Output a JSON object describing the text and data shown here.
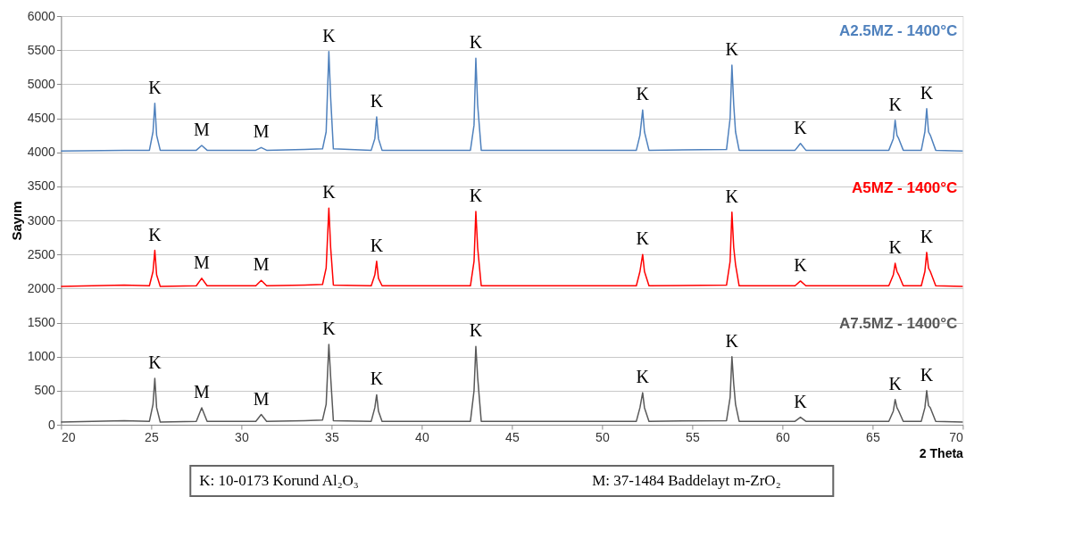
{
  "chart_data": {
    "type": "line",
    "xlabel": "2 Theta",
    "ylabel": "Sayım",
    "x": [
      20,
      23.5,
      24.9,
      25.1,
      25.2,
      25.3,
      25.5,
      27.5,
      27.8,
      28.1,
      30.8,
      31.1,
      31.4,
      33.5,
      34.5,
      34.7,
      34.85,
      34.95,
      35.1,
      37.2,
      37.4,
      37.5,
      37.6,
      37.8,
      42.7,
      42.9,
      43.0,
      43.1,
      43.3,
      51.9,
      52.1,
      52.25,
      52.35,
      52.6,
      56.9,
      57.1,
      57.2,
      57.3,
      57.4,
      57.6,
      60.7,
      61.0,
      61.3,
      65.9,
      66.15,
      66.25,
      66.35,
      66.45,
      66.7,
      67.7,
      67.9,
      68.0,
      68.1,
      68.2,
      68.5,
      70
    ],
    "series": [
      {
        "name": "A2.5MZ - 1400°C",
        "color": "#4f81bd",
        "values": [
          4020,
          4030,
          4030,
          4300,
          4720,
          4250,
          4030,
          4030,
          4100,
          4030,
          4030,
          4070,
          4030,
          4040,
          4050,
          4300,
          5480,
          4800,
          4050,
          4030,
          4200,
          4520,
          4200,
          4030,
          4030,
          4400,
          5380,
          4700,
          4030,
          4030,
          4250,
          4620,
          4300,
          4030,
          4040,
          4500,
          5280,
          4700,
          4300,
          4030,
          4030,
          4130,
          4030,
          4030,
          4200,
          4470,
          4250,
          4200,
          4030,
          4030,
          4300,
          4640,
          4300,
          4250,
          4030,
          4020
        ]
      },
      {
        "name": "A5MZ - 1400°C",
        "color": "#ff0000",
        "values": [
          2030,
          2050,
          2040,
          2250,
          2560,
          2200,
          2030,
          2040,
          2150,
          2040,
          2040,
          2120,
          2040,
          2050,
          2060,
          2300,
          3180,
          2600,
          2050,
          2040,
          2200,
          2400,
          2150,
          2040,
          2040,
          2400,
          3130,
          2600,
          2040,
          2040,
          2250,
          2500,
          2250,
          2040,
          2050,
          2400,
          3120,
          2600,
          2350,
          2040,
          2040,
          2110,
          2040,
          2040,
          2200,
          2370,
          2250,
          2200,
          2040,
          2040,
          2250,
          2530,
          2300,
          2250,
          2040,
          2030
        ]
      },
      {
        "name": "A7.5MZ - 1400°C",
        "color": "#595959",
        "values": [
          40,
          60,
          50,
          300,
          680,
          250,
          40,
          50,
          250,
          50,
          50,
          150,
          50,
          60,
          70,
          300,
          1180,
          700,
          60,
          50,
          250,
          440,
          200,
          50,
          50,
          500,
          1150,
          700,
          50,
          50,
          250,
          470,
          250,
          50,
          60,
          400,
          1000,
          600,
          300,
          50,
          50,
          110,
          50,
          50,
          200,
          370,
          250,
          200,
          50,
          50,
          250,
          500,
          280,
          250,
          50,
          40
        ]
      }
    ],
    "xlim": [
      20,
      70
    ],
    "xticks": [
      20,
      25,
      30,
      35,
      40,
      45,
      50,
      55,
      60,
      65,
      70
    ],
    "ylim": [
      0,
      6000
    ],
    "yticks": [
      0,
      500,
      1000,
      1500,
      2000,
      2500,
      3000,
      3500,
      4000,
      4500,
      5000,
      5500,
      6000
    ],
    "grid": "y",
    "legend": false,
    "marker": "none",
    "line_style": "solid",
    "annotations": [
      {
        "text": "K",
        "x": 25.2,
        "y": 4720
      },
      {
        "text": "M",
        "x": 27.8,
        "y": 4100
      },
      {
        "text": "M",
        "x": 31.1,
        "y": 4070
      },
      {
        "text": "K",
        "x": 34.85,
        "y": 5480
      },
      {
        "text": "K",
        "x": 37.5,
        "y": 4520
      },
      {
        "text": "K",
        "x": 43.0,
        "y": 5380
      },
      {
        "text": "K",
        "x": 52.25,
        "y": 4620
      },
      {
        "text": "K",
        "x": 57.2,
        "y": 5280
      },
      {
        "text": "K",
        "x": 61.0,
        "y": 4130
      },
      {
        "text": "K",
        "x": 66.25,
        "y": 4470
      },
      {
        "text": "K",
        "x": 68.0,
        "y": 4640
      },
      {
        "text": "K",
        "x": 25.2,
        "y": 2560
      },
      {
        "text": "M",
        "x": 27.8,
        "y": 2150
      },
      {
        "text": "M",
        "x": 31.1,
        "y": 2120
      },
      {
        "text": "K",
        "x": 34.85,
        "y": 3180
      },
      {
        "text": "K",
        "x": 37.5,
        "y": 2400
      },
      {
        "text": "K",
        "x": 43.0,
        "y": 3130
      },
      {
        "text": "K",
        "x": 52.25,
        "y": 2500
      },
      {
        "text": "K",
        "x": 57.2,
        "y": 3120
      },
      {
        "text": "K",
        "x": 61.0,
        "y": 2110
      },
      {
        "text": "K",
        "x": 66.25,
        "y": 2370
      },
      {
        "text": "K",
        "x": 68.0,
        "y": 2530
      },
      {
        "text": "K",
        "x": 25.2,
        "y": 680
      },
      {
        "text": "M",
        "x": 27.8,
        "y": 250
      },
      {
        "text": "M",
        "x": 31.1,
        "y": 150
      },
      {
        "text": "K",
        "x": 34.85,
        "y": 1180
      },
      {
        "text": "K",
        "x": 37.5,
        "y": 440
      },
      {
        "text": "K",
        "x": 43.0,
        "y": 1150
      },
      {
        "text": "K",
        "x": 52.25,
        "y": 470
      },
      {
        "text": "K",
        "x": 57.2,
        "y": 1000
      },
      {
        "text": "K",
        "x": 61.0,
        "y": 110
      },
      {
        "text": "K",
        "x": 66.25,
        "y": 370
      },
      {
        "text": "K",
        "x": 68.0,
        "y": 500
      },
      "K: 10-0173 Korund Al₂O₃",
      "M: 37-1484 Baddelayt m-ZrO₂"
    ]
  }
}
